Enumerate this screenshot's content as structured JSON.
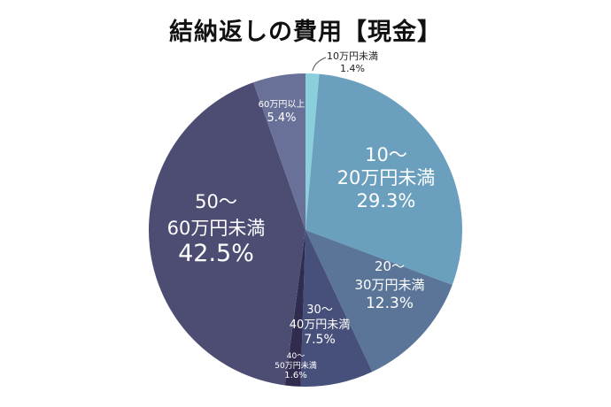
{
  "chart_data": {
    "type": "pie",
    "title": "結納返しの費用【現金】",
    "slices": [
      {
        "name": "10万円未満",
        "label_lines": [
          "10万円未満",
          "1.4%"
        ],
        "value": 1.4,
        "color": "#8ccfdc"
      },
      {
        "name": "10〜20万円未満",
        "label_lines": [
          "10〜",
          "20万円未満",
          "29.3%"
        ],
        "value": 29.3,
        "color": "#6a9fbe"
      },
      {
        "name": "20〜30万円未満",
        "label_lines": [
          "20〜",
          "30万円未満",
          "12.3%"
        ],
        "value": 12.3,
        "color": "#5a7598"
      },
      {
        "name": "30〜40万円未満",
        "label_lines": [
          "30〜",
          "40万円未満",
          "7.5%"
        ],
        "value": 7.5,
        "color": "#47507a"
      },
      {
        "name": "40〜50万円未満",
        "label_lines": [
          "40〜",
          "50万円未満",
          "1.6%"
        ],
        "value": 1.6,
        "color": "#2f2c4f"
      },
      {
        "name": "50〜60万円未満",
        "label_lines": [
          "50〜",
          "60万円未満",
          "42.5%"
        ],
        "value": 42.5,
        "color": "#4d4d74"
      },
      {
        "name": "60万円以上",
        "label_lines": [
          "60万円以上",
          "5.4%"
        ],
        "value": 5.4,
        "color": "#6a7198"
      }
    ]
  }
}
